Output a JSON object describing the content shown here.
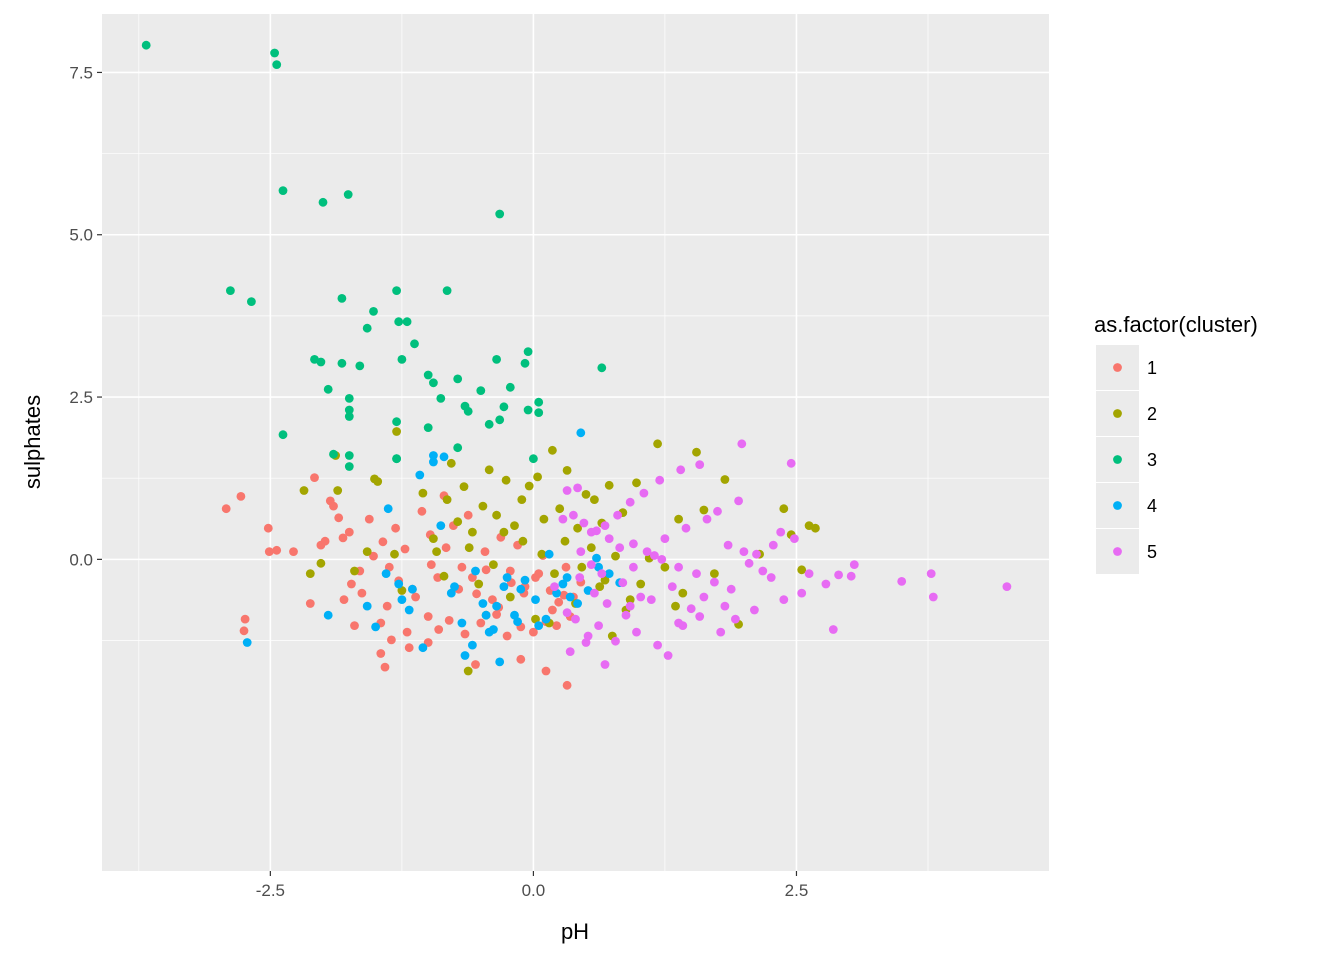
{
  "chart_data": {
    "type": "scatter",
    "title": "",
    "xlabel": "pH",
    "ylabel": "sulphates",
    "xlim": [
      -4.1,
      4.9
    ],
    "ylim": [
      -4.8,
      8.4
    ],
    "x_ticks": [
      -2.5,
      0.0,
      2.5
    ],
    "x_tick_labels": [
      "-2.5",
      "0.0",
      "2.5"
    ],
    "y_ticks": [
      0.0,
      2.5,
      5.0,
      7.5
    ],
    "y_tick_labels": [
      "0.0",
      "2.5",
      "5.0",
      "7.5"
    ],
    "grid": true,
    "legend": {
      "title": "as.factor(cluster)",
      "position": "right",
      "entries": [
        "1",
        "2",
        "3",
        "4",
        "5"
      ]
    },
    "colors": {
      "1": "#F8766D",
      "2": "#A3A500",
      "3": "#00BF7D",
      "4": "#00B0F6",
      "5": "#E76BF3"
    },
    "series": [
      {
        "name": "1",
        "x": [
          -2.92,
          -2.78,
          -2.74,
          -2.52,
          -2.51,
          -2.44,
          -2.75,
          -2.08,
          -2.02,
          -1.93,
          -1.85,
          -1.81,
          -1.73,
          -1.63,
          -1.56,
          -1.43,
          -1.37,
          -1.31,
          -1.22,
          -1.15,
          -1.06,
          -0.98,
          -0.91,
          -0.85,
          -0.76,
          -0.68,
          -0.62,
          -0.54,
          -0.46,
          -0.39,
          -0.31,
          -0.22,
          -0.15,
          -0.08,
          0.02,
          0.09,
          0.16,
          0.24,
          0.31,
          0.38,
          0.45,
          -1.75,
          -1.65,
          -1.52,
          -1.39,
          -1.28,
          -1.12,
          -0.97,
          -0.83,
          -0.71,
          -0.58,
          -0.45,
          -0.33,
          -0.21,
          -0.09,
          0.05,
          0.18,
          0.29,
          -1.9,
          -1.8,
          -1.7,
          -1.45,
          -1.35,
          -1.2,
          -1.0,
          -0.9,
          -0.8,
          -0.65,
          -0.5,
          -0.35,
          -0.25,
          -0.12,
          0.0,
          0.12,
          0.22,
          0.35,
          -1.45,
          -1.41,
          -1.18,
          -1.0,
          -0.55,
          -0.12,
          0.12,
          0.32,
          -2.12,
          -1.98,
          -2.28
        ],
        "y": [
          0.78,
          0.97,
          -0.92,
          0.48,
          0.12,
          0.14,
          -1.1,
          1.26,
          0.22,
          0.9,
          0.64,
          0.33,
          -0.38,
          -0.52,
          0.62,
          0.27,
          -0.12,
          0.48,
          0.16,
          -0.46,
          0.74,
          0.38,
          -0.28,
          0.98,
          0.52,
          -0.12,
          0.68,
          -0.53,
          0.12,
          -0.62,
          0.34,
          -0.18,
          0.22,
          -0.42,
          -0.28,
          0.06,
          -0.48,
          -0.66,
          -0.12,
          -0.58,
          -0.35,
          0.42,
          -0.18,
          0.05,
          -0.72,
          -0.33,
          -0.58,
          -0.08,
          0.18,
          -0.46,
          -0.28,
          -0.16,
          -0.74,
          -0.36,
          -0.52,
          -0.22,
          -0.78,
          -0.55,
          0.82,
          -0.62,
          -1.02,
          -0.98,
          -1.24,
          -1.12,
          -0.88,
          -1.08,
          -0.94,
          -1.15,
          -0.98,
          -0.85,
          -1.18,
          -1.04,
          -1.12,
          -0.96,
          -1.02,
          -0.88,
          -1.45,
          -1.66,
          -1.36,
          -1.28,
          -1.62,
          -1.54,
          -1.72,
          -1.94,
          -0.68,
          0.28,
          0.12
        ]
      },
      {
        "name": "2",
        "x": [
          -2.18,
          -2.12,
          -1.88,
          -1.86,
          -1.58,
          -1.51,
          -1.48,
          -1.3,
          -1.05,
          -0.82,
          -0.78,
          -0.72,
          -0.66,
          -0.58,
          -0.48,
          -0.42,
          -0.35,
          -0.26,
          -0.18,
          -0.11,
          -0.04,
          0.04,
          0.1,
          0.18,
          0.25,
          0.32,
          0.42,
          0.5,
          0.58,
          0.65,
          0.72,
          0.85,
          0.98,
          1.18,
          1.38,
          1.55,
          1.62,
          1.82,
          2.38,
          2.45,
          2.62,
          2.68,
          -2.02,
          -1.7,
          -1.25,
          -1.32,
          -0.95,
          -0.92,
          -0.85,
          -0.61,
          -0.52,
          -0.38,
          -0.28,
          -0.1,
          0.08,
          0.2,
          0.3,
          0.46,
          0.55,
          0.68,
          0.78,
          0.92,
          1.02,
          1.1,
          1.25,
          1.42,
          1.72,
          1.95,
          2.15,
          2.55,
          -0.62,
          -0.45,
          -0.22,
          0.02,
          0.15,
          0.4,
          0.63,
          0.75,
          0.88,
          1.35
        ],
        "y": [
          1.06,
          -0.22,
          1.6,
          1.06,
          0.12,
          1.24,
          1.2,
          1.97,
          1.02,
          0.92,
          1.48,
          0.58,
          1.12,
          0.42,
          0.82,
          1.38,
          0.68,
          1.22,
          0.52,
          0.92,
          1.13,
          1.27,
          0.62,
          1.68,
          0.78,
          1.37,
          0.48,
          1.0,
          0.92,
          0.56,
          1.14,
          0.72,
          1.18,
          1.78,
          0.62,
          1.65,
          0.76,
          1.23,
          0.78,
          0.38,
          0.52,
          0.48,
          -0.06,
          -0.18,
          -0.48,
          0.08,
          0.32,
          0.12,
          -0.26,
          0.18,
          -0.38,
          -0.08,
          0.42,
          0.28,
          0.08,
          -0.22,
          0.28,
          -0.12,
          0.18,
          -0.32,
          0.05,
          -0.62,
          -0.38,
          0.02,
          -0.12,
          -0.52,
          -0.22,
          -1.0,
          0.08,
          -0.16,
          -1.72,
          -0.86,
          -0.58,
          -0.92,
          -0.98,
          -0.68,
          -0.42,
          -1.18,
          -0.78,
          -0.72
        ]
      },
      {
        "name": "3",
        "x": [
          -3.68,
          -2.46,
          -2.44,
          -2.38,
          -2.0,
          -1.76,
          -0.32,
          -2.88,
          -2.68,
          -1.82,
          -1.3,
          -1.28,
          -1.2,
          -0.82,
          -1.52,
          -1.58,
          -1.13,
          -2.08,
          -1.82,
          -1.0,
          -0.72,
          -0.35,
          -0.05,
          0.65,
          -1.75,
          -1.75,
          -1.75,
          -1.65,
          -1.25,
          -1.3,
          -2.02,
          -1.95,
          -2.38,
          -1.75,
          -1.9,
          -1.3,
          -0.95,
          -0.88,
          -0.62,
          -0.5,
          -0.28,
          -0.22,
          -0.08,
          -0.05,
          0.05,
          0.05,
          -0.32,
          -0.72,
          -1.0,
          -1.3,
          -1.75,
          -0.65,
          -0.42,
          0.0
        ],
        "y": [
          7.92,
          7.8,
          7.62,
          5.68,
          5.5,
          5.62,
          5.32,
          4.14,
          3.97,
          4.02,
          4.14,
          3.66,
          3.66,
          4.14,
          3.82,
          3.56,
          3.32,
          3.08,
          3.02,
          2.84,
          2.78,
          3.08,
          3.2,
          2.95,
          2.48,
          2.3,
          2.2,
          2.98,
          3.08,
          2.12,
          3.04,
          2.62,
          1.92,
          1.43,
          1.62,
          1.55,
          2.72,
          2.48,
          2.28,
          2.6,
          2.35,
          2.65,
          3.02,
          2.3,
          2.42,
          2.26,
          2.15,
          1.72,
          2.03,
          1.55,
          1.6,
          2.36,
          2.08,
          1.55
        ]
      },
      {
        "name": "4",
        "x": [
          -2.72,
          -1.95,
          -1.58,
          -1.38,
          -1.28,
          -1.18,
          -1.08,
          -0.95,
          -0.88,
          -0.78,
          -0.68,
          -0.58,
          -0.48,
          -0.38,
          -0.28,
          -0.18,
          -0.08,
          0.02,
          0.12,
          0.22,
          0.32,
          0.42,
          0.52,
          0.62,
          0.72,
          0.82,
          0.45,
          -0.95,
          -0.85,
          -1.15,
          -0.55,
          -0.35,
          -0.12,
          0.15,
          -1.5,
          -1.25,
          -1.05,
          -0.75,
          -0.45,
          -0.25,
          0.05,
          0.35,
          -0.65,
          -0.42,
          -0.32,
          -0.15,
          0.28,
          0.6,
          -1.4
        ],
        "y": [
          -1.28,
          -0.86,
          -0.72,
          0.78,
          -0.38,
          -0.78,
          1.3,
          1.6,
          0.52,
          -0.52,
          -0.98,
          -1.32,
          -0.68,
          -1.08,
          -0.42,
          -0.86,
          -0.32,
          -0.62,
          -0.92,
          -0.52,
          -0.28,
          -0.68,
          -0.48,
          -0.12,
          -0.22,
          -0.36,
          1.95,
          1.5,
          1.58,
          -0.46,
          -0.18,
          -0.72,
          -0.46,
          0.08,
          -1.04,
          -0.62,
          -1.36,
          -0.42,
          -0.86,
          -0.28,
          -1.02,
          -0.58,
          -1.48,
          -1.12,
          -1.58,
          -0.96,
          -0.38,
          0.02,
          -0.22
        ]
      },
      {
        "name": "5",
        "x": [
          1.98,
          1.95,
          2.45,
          1.58,
          1.4,
          1.2,
          1.05,
          0.92,
          0.8,
          0.68,
          0.55,
          0.42,
          0.32,
          2.28,
          2.35,
          2.12,
          2.05,
          2.18,
          2.26,
          2.48,
          2.62,
          2.78,
          2.9,
          3.05,
          3.02,
          3.5,
          3.78,
          3.8,
          4.5,
          2.85,
          2.55,
          2.38,
          1.88,
          1.72,
          1.55,
          1.38,
          1.22,
          1.08,
          0.95,
          0.82,
          0.72,
          0.6,
          0.48,
          0.38,
          0.28,
          0.45,
          0.55,
          0.65,
          0.85,
          0.95,
          1.15,
          1.25,
          1.45,
          1.65,
          1.75,
          1.85,
          2.0,
          0.58,
          0.7,
          0.88,
          1.02,
          1.32,
          1.5,
          1.62,
          1.82,
          0.4,
          0.52,
          0.62,
          0.78,
          0.98,
          1.18,
          1.28,
          1.42,
          1.58,
          1.78,
          1.92,
          2.1,
          0.35,
          0.5,
          0.68,
          0.92,
          1.12,
          1.38,
          0.2,
          0.32,
          0.44
        ],
        "y": [
          1.78,
          0.9,
          1.48,
          1.46,
          1.38,
          1.22,
          1.02,
          0.88,
          0.68,
          0.52,
          0.42,
          1.1,
          1.06,
          0.22,
          0.42,
          0.08,
          -0.06,
          -0.18,
          -0.28,
          0.32,
          -0.22,
          -0.38,
          -0.24,
          -0.08,
          -0.26,
          -0.34,
          -0.22,
          -0.58,
          -0.42,
          -1.08,
          -0.52,
          -0.62,
          -0.46,
          -0.35,
          -0.22,
          -0.12,
          0.0,
          0.12,
          0.24,
          0.18,
          0.32,
          0.44,
          0.56,
          0.68,
          0.62,
          0.12,
          -0.08,
          -0.22,
          -0.36,
          -0.12,
          0.06,
          0.32,
          0.48,
          0.62,
          0.74,
          0.22,
          0.12,
          -0.52,
          -0.68,
          -0.86,
          -0.58,
          -0.42,
          -0.76,
          -0.58,
          -0.72,
          -0.92,
          -1.18,
          -1.02,
          -1.26,
          -1.12,
          -1.32,
          -1.48,
          -1.02,
          -0.88,
          -1.12,
          -0.92,
          -0.78,
          -1.42,
          -1.28,
          -1.62,
          -0.72,
          -0.62,
          -0.98,
          -0.42,
          -0.82,
          -0.28
        ]
      }
    ]
  }
}
